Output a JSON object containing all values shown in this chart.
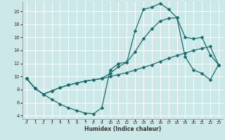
{
  "xlabel": "Humidex (Indice chaleur)",
  "bg_color": "#cce8e8",
  "grid_color": "#ffffff",
  "line_color": "#1a6b6b",
  "markersize": 2.5,
  "linewidth": 0.9,
  "xlim": [
    -0.5,
    23.5
  ],
  "ylim": [
    3.5,
    21.5
  ],
  "xticks": [
    0,
    1,
    2,
    3,
    4,
    5,
    6,
    7,
    8,
    9,
    10,
    11,
    12,
    13,
    14,
    15,
    16,
    17,
    18,
    19,
    20,
    21,
    22,
    23
  ],
  "yticks": [
    4,
    6,
    8,
    10,
    12,
    14,
    16,
    18,
    20
  ],
  "curve1_x": [
    0,
    1,
    2,
    3,
    4,
    5,
    6,
    7,
    8,
    9,
    10,
    11,
    12,
    13,
    14,
    15,
    16,
    17,
    18,
    19,
    20,
    21,
    22,
    23
  ],
  "curve1_y": [
    9.7,
    8.2,
    7.3,
    6.5,
    5.8,
    5.2,
    4.8,
    4.4,
    4.3,
    5.2,
    11.0,
    12.0,
    12.2,
    17.0,
    20.3,
    20.6,
    21.2,
    20.3,
    19.0,
    13.0,
    11.0,
    10.5,
    9.5,
    11.8
  ],
  "curve2_x": [
    0,
    1,
    2,
    3,
    4,
    5,
    6,
    7,
    8,
    9,
    10,
    11,
    12,
    13,
    14,
    15,
    16,
    17,
    18,
    19,
    20,
    21,
    22,
    23
  ],
  "curve2_y": [
    9.7,
    8.2,
    7.3,
    7.8,
    8.3,
    8.7,
    9.0,
    9.3,
    9.5,
    9.7,
    10.0,
    10.3,
    10.6,
    11.0,
    11.4,
    11.8,
    12.3,
    12.8,
    13.2,
    13.6,
    14.0,
    14.3,
    14.6,
    11.8
  ],
  "curve3_x": [
    0,
    1,
    2,
    3,
    4,
    5,
    6,
    7,
    8,
    9,
    10,
    11,
    12,
    13,
    14,
    15,
    16,
    17,
    18,
    19,
    20,
    21,
    22,
    23
  ],
  "curve3_y": [
    9.7,
    8.2,
    7.3,
    7.8,
    8.3,
    8.7,
    9.0,
    9.3,
    9.5,
    9.7,
    10.5,
    11.5,
    12.2,
    13.8,
    15.8,
    17.3,
    18.5,
    18.9,
    19.0,
    16.0,
    15.8,
    16.0,
    13.3,
    11.8
  ]
}
